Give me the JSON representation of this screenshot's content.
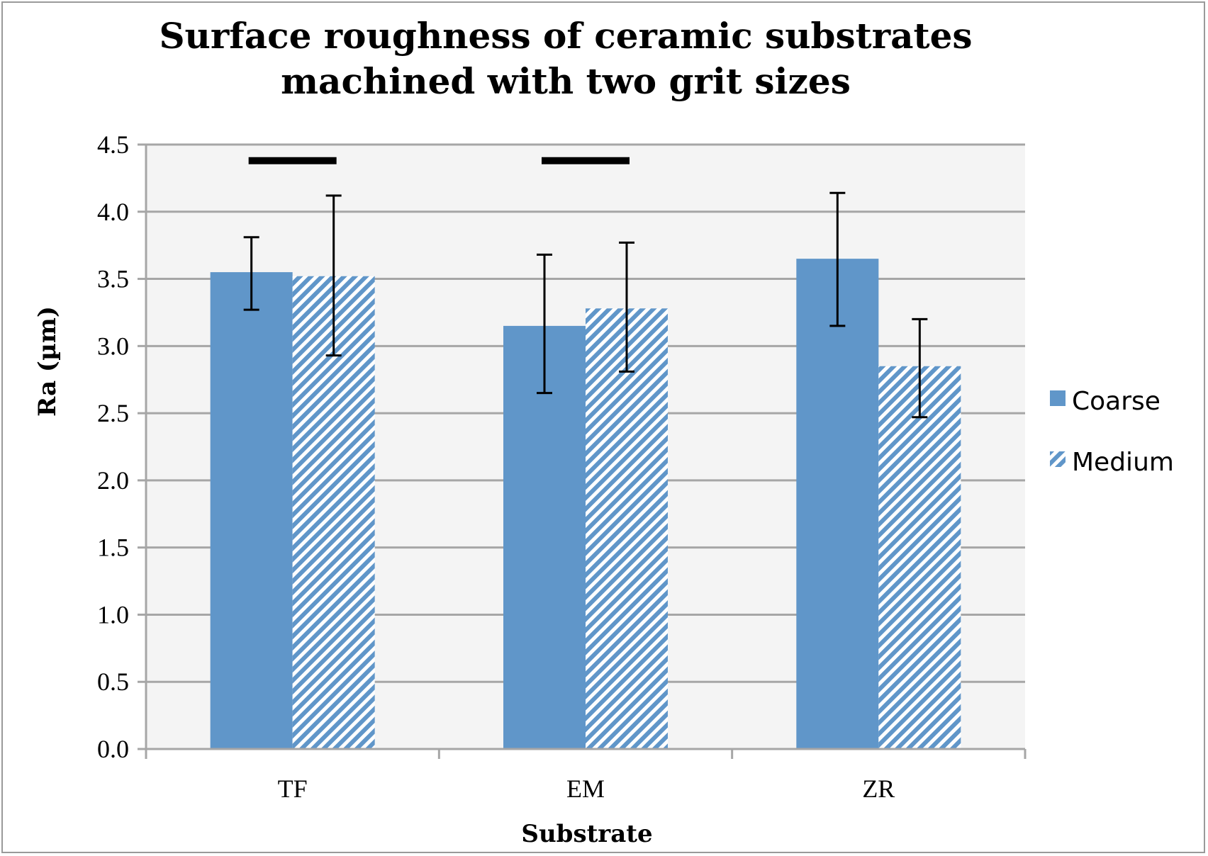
{
  "chart_data": {
    "type": "bar",
    "title_lines": [
      "Surface roughness of ceramic substrates",
      "machined with two grit sizes"
    ],
    "xlabel": "Substrate",
    "ylabel": "Ra (µm)",
    "categories": [
      "TF",
      "EM",
      "ZR"
    ],
    "ylim": [
      0,
      4.5
    ],
    "y_ticks": [
      "0.0",
      "0.5",
      "1.0",
      "1.5",
      "2.0",
      "2.5",
      "3.0",
      "3.5",
      "4.0",
      "4.5"
    ],
    "grid": true,
    "legend_position": "right",
    "series": [
      {
        "name": "Coarse",
        "style": "solid",
        "color": "#6096c9",
        "values": [
          3.55,
          3.15,
          3.65
        ],
        "error_low": [
          3.27,
          2.65,
          3.15
        ],
        "error_high": [
          3.81,
          3.68,
          4.14
        ]
      },
      {
        "name": "Medium",
        "style": "hatched",
        "color": "#6096c9",
        "values": [
          3.52,
          3.28,
          2.85
        ],
        "error_low": [
          2.93,
          2.81,
          2.47
        ],
        "error_high": [
          4.12,
          3.77,
          3.2
        ]
      }
    ],
    "significance_bars": [
      {
        "category": "TF",
        "y": 4.38
      },
      {
        "category": "EM",
        "y": 4.38
      }
    ],
    "plot_background": "#f4f4f4",
    "grid_color": "#a6a6a6"
  }
}
